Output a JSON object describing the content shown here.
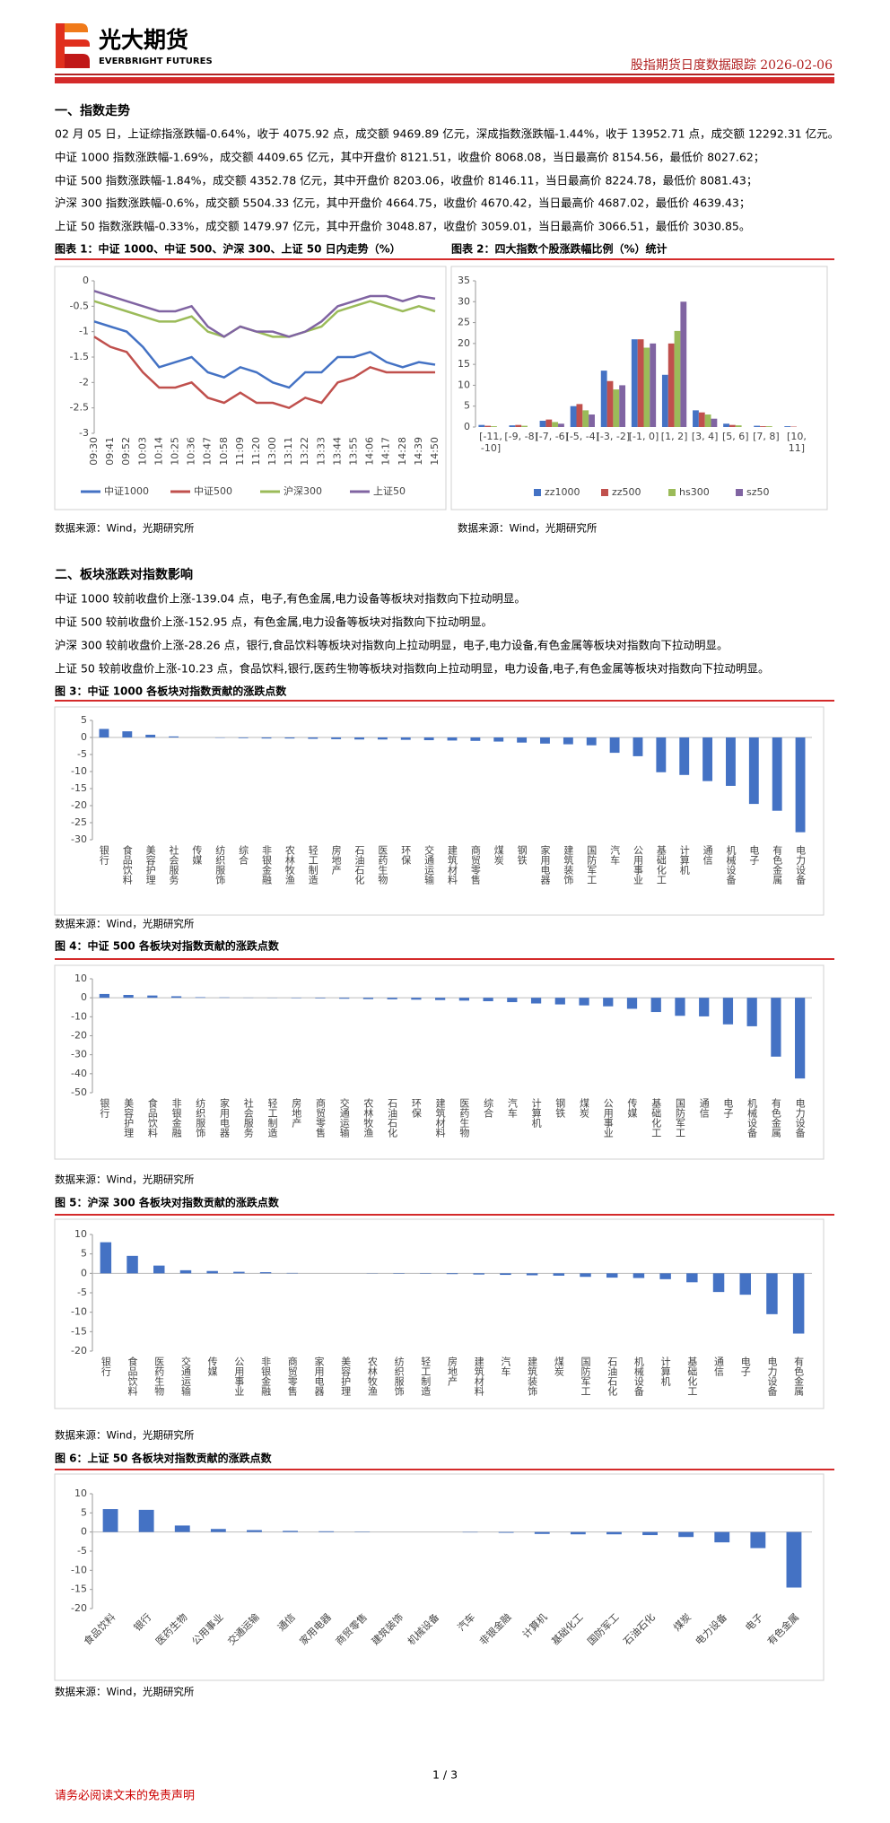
{
  "header": {
    "logo_cn": "光大期货",
    "logo_en": "EVERBRIGHT FUTURES",
    "report": "股指期货日度数据跟踪 2026-02-06"
  },
  "sections": [
    {
      "title": "一、指数走势",
      "paragraphs": [
        "02 月 05 日，上证综指涨跌幅-0.64%，收于 4075.92 点，成交额 9469.89 亿元，深成指数涨跌幅-1.44%，收于 13952.71 点，成交额 12292.31 亿元。",
        "中证 1000 指数涨跌幅-1.69%，成交额 4409.65 亿元，其中开盘价 8121.51，收盘价 8068.08，当日最高价 8154.56，最低价 8027.62；",
        "中证 500 指数涨跌幅-1.84%，成交额 4352.78 亿元，其中开盘价 8203.06，收盘价 8146.11，当日最高价 8224.78，最低价 8081.43；",
        "沪深 300 指数涨跌幅-0.6%，成交额 5504.33 亿元，其中开盘价 4664.75，收盘价 4670.42，当日最高价 4687.02，最低价 4639.43；",
        "上证 50 指数涨跌幅-0.33%，成交额 1479.97 亿元，其中开盘价 3048.87，收盘价 3059.01，当日最高价 3066.51，最低价 3030.85。"
      ]
    },
    {
      "title": "二、板块涨跌对指数影响",
      "paragraphs": [
        "中证 1000 较前收盘价上涨-139.04 点，电子,有色金属,电力设备等板块对指数向下拉动明显。",
        "中证 500 较前收盘价上涨-152.95 点，有色金属,电力设备等板块对指数向下拉动明显。",
        "沪深 300 较前收盘价上涨-28.26 点，银行,食品饮料等板块对指数向上拉动明显，电子,电力设备,有色金属等板块对指数向下拉动明显。",
        "上证 50 较前收盘价上涨-10.23 点，食品饮料,银行,医药生物等板块对指数向上拉动明显，电力设备,电子,有色金属等板块对指数向下拉动明显。"
      ]
    }
  ],
  "chart_data": [
    {
      "type": "line",
      "title": "图表 1：中证 1000、中证 500、沪深 300、上证 50 日内走势（%）",
      "source": "数据来源：Wind，光期研究所",
      "categories": [
        "09:30",
        "09:41",
        "09:52",
        "10:03",
        "10:14",
        "10:25",
        "10:36",
        "10:47",
        "10:58",
        "11:09",
        "11:20",
        "13:00",
        "13:11",
        "13:22",
        "13:33",
        "13:44",
        "13:55",
        "14:06",
        "14:17",
        "14:28",
        "14:39",
        "14:50"
      ],
      "ylim": [
        -3,
        0
      ],
      "yticks": [
        0,
        -0.5,
        -1,
        -1.5,
        -2,
        -2.5,
        -3
      ],
      "series": [
        {
          "name": "中证1000",
          "color": "#4472c4",
          "values": [
            -0.8,
            -0.9,
            -1.0,
            -1.3,
            -1.7,
            -1.6,
            -1.5,
            -1.8,
            -1.9,
            -1.7,
            -1.8,
            -2.0,
            -2.1,
            -1.8,
            -1.8,
            -1.5,
            -1.5,
            -1.4,
            -1.6,
            -1.7,
            -1.6,
            -1.65
          ]
        },
        {
          "name": "中证500",
          "color": "#c0504d",
          "values": [
            -1.1,
            -1.3,
            -1.4,
            -1.8,
            -2.1,
            -2.1,
            -2.0,
            -2.3,
            -2.4,
            -2.2,
            -2.4,
            -2.4,
            -2.5,
            -2.3,
            -2.4,
            -2.0,
            -1.9,
            -1.7,
            -1.8,
            -1.8,
            -1.8,
            -1.8
          ]
        },
        {
          "name": "沪深300",
          "color": "#9bbb59",
          "values": [
            -0.4,
            -0.5,
            -0.6,
            -0.7,
            -0.8,
            -0.8,
            -0.7,
            -1.0,
            -1.1,
            -0.9,
            -1.0,
            -1.1,
            -1.1,
            -1.0,
            -0.9,
            -0.6,
            -0.5,
            -0.4,
            -0.5,
            -0.6,
            -0.5,
            -0.6
          ]
        },
        {
          "name": "上证50",
          "color": "#8064a2",
          "values": [
            -0.2,
            -0.3,
            -0.4,
            -0.5,
            -0.6,
            -0.6,
            -0.5,
            -0.9,
            -1.1,
            -0.9,
            -1.0,
            -1.0,
            -1.1,
            -1.0,
            -0.8,
            -0.5,
            -0.4,
            -0.3,
            -0.3,
            -0.4,
            -0.3,
            -0.35
          ]
        }
      ]
    },
    {
      "type": "grouped_bar",
      "title": "图表 2：四大指数个股涨跌幅比例（%）统计",
      "source": "数据来源：Wind，光期研究所",
      "categories": [
        "[-11, -10]",
        "[-9, -8]",
        "[-7, -6]",
        "[-5, -4]",
        "[-3, -2]",
        "[-1, 0]",
        "[1, 2]",
        "[3, 4]",
        "[5, 6]",
        "[7, 8]",
        "[10, 11]"
      ],
      "ylim": [
        0,
        35
      ],
      "yticks": [
        0,
        5,
        10,
        15,
        20,
        25,
        30,
        35
      ],
      "series": [
        {
          "name": "zz1000",
          "color": "#4472c4",
          "values": [
            0.5,
            0.4,
            1.5,
            5,
            13.5,
            21,
            12.5,
            4,
            0.8,
            0.3,
            0.2
          ]
        },
        {
          "name": "zz500",
          "color": "#c0504d",
          "values": [
            0.3,
            0.5,
            1.8,
            5.5,
            11,
            21,
            20,
            3.5,
            0.5,
            0.2,
            0.1
          ]
        },
        {
          "name": "hs300",
          "color": "#9bbb59",
          "values": [
            0.2,
            0.3,
            1.2,
            4,
            9,
            19,
            23,
            3,
            0.4,
            0.2,
            0
          ]
        },
        {
          "name": "sz50",
          "color": "#8064a2",
          "values": [
            0,
            0,
            0.8,
            3,
            10,
            20,
            30,
            2,
            0,
            0,
            0
          ]
        }
      ]
    },
    {
      "type": "bar",
      "title": "图 3：中证 1000 各板块对指数贡献的涨跌点数",
      "source": "数据来源：Wind，光期研究所",
      "color": "#4472c4",
      "categories": [
        "银行",
        "食品饮料",
        "美容护理",
        "社会服务",
        "传媒",
        "纺织服饰",
        "综合",
        "非银金融",
        "农林牧渔",
        "轻工制造",
        "房地产",
        "石油石化",
        "医药生物",
        "环保",
        "交通运输",
        "建筑材料",
        "商贸零售",
        "煤炭",
        "钢铁",
        "家用电器",
        "建筑装饰",
        "国防军工",
        "汽车",
        "公用事业",
        "基础化工",
        "计算机",
        "通信",
        "机械设备",
        "电子",
        "有色金属",
        "电力设备"
      ],
      "values": [
        2.5,
        1.8,
        0.8,
        0.3,
        0,
        -0.1,
        -0.2,
        -0.3,
        -0.3,
        -0.4,
        -0.5,
        -0.6,
        -0.6,
        -0.7,
        -0.8,
        -0.9,
        -1.0,
        -1.2,
        -1.5,
        -1.8,
        -2.0,
        -2.3,
        -4.5,
        -5.5,
        -10.2,
        -11,
        -12.8,
        -14.2,
        -19.5,
        -21.5,
        -27.8
      ],
      "ylim": [
        -30,
        5
      ],
      "yticks": [
        5,
        0,
        -5,
        -10,
        -15,
        -20,
        -25,
        -30
      ]
    },
    {
      "type": "bar",
      "title": "图 4：中证 500 各板块对指数贡献的涨跌点数",
      "source": "数据来源：Wind，光期研究所",
      "color": "#4472c4",
      "categories": [
        "银行",
        "美容护理",
        "食品饮料",
        "非银金融",
        "纺织服饰",
        "家用电器",
        "社会服务",
        "轻工制造",
        "房地产",
        "商贸零售",
        "交通运输",
        "农林牧渔",
        "石油石化",
        "环保",
        "建筑材料",
        "医药生物",
        "综合",
        "汽车",
        "计算机",
        "钢铁",
        "煤炭",
        "公用事业",
        "传媒",
        "基础化工",
        "国防军工",
        "通信",
        "电子",
        "机械设备",
        "有色金属",
        "电力设备"
      ],
      "values": [
        2.0,
        1.5,
        1.2,
        0.8,
        0.3,
        0.2,
        0.1,
        -0.1,
        -0.2,
        -0.3,
        -0.5,
        -0.7,
        -0.8,
        -1.0,
        -1.2,
        -1.5,
        -1.8,
        -2.3,
        -3.0,
        -3.5,
        -4.0,
        -4.5,
        -5.8,
        -7.5,
        -9.5,
        -9.8,
        -14,
        -15,
        -31,
        -42.5
      ],
      "ylim": [
        -50,
        10
      ],
      "yticks": [
        10,
        0,
        -10,
        -20,
        -30,
        -40,
        -50
      ]
    },
    {
      "type": "bar",
      "title": "图 5：沪深 300 各板块对指数贡献的涨跌点数",
      "source": "数据来源：Wind，光期研究所",
      "color": "#4472c4",
      "categories": [
        "银行",
        "食品饮料",
        "医药生物",
        "交通运输",
        "传媒",
        "公用事业",
        "非银金融",
        "商贸零售",
        "家用电器",
        "美容护理",
        "农林牧渔",
        "纺织服饰",
        "轻工制造",
        "房地产",
        "建筑材料",
        "汽车",
        "建筑装饰",
        "煤炭",
        "国防军工",
        "石油石化",
        "机械设备",
        "计算机",
        "基础化工",
        "通信",
        "电子",
        "电力设备",
        "有色金属"
      ],
      "values": [
        8.0,
        4.5,
        2.0,
        0.8,
        0.6,
        0.4,
        0.3,
        0.1,
        0,
        0,
        -0.05,
        -0.1,
        -0.1,
        -0.2,
        -0.3,
        -0.4,
        -0.5,
        -0.6,
        -0.9,
        -1.1,
        -1.2,
        -1.5,
        -2.3,
        -4.8,
        -5.5,
        -10.5,
        -15.5
      ],
      "ylim": [
        -20,
        10
      ],
      "yticks": [
        10,
        5,
        0,
        -5,
        -10,
        -15,
        -20
      ]
    },
    {
      "type": "bar",
      "title": "图 6：上证 50 各板块对指数贡献的涨跌点数",
      "source": "数据来源：Wind，光期研究所",
      "color": "#4472c4",
      "categories": [
        "食品饮料",
        "银行",
        "医药生物",
        "公用事业",
        "交通运输",
        "通信",
        "家用电器",
        "商贸零售",
        "建筑装饰",
        "机械设备",
        "汽车",
        "非银金融",
        "计算机",
        "基础化工",
        "国防军工",
        "石油石化",
        "煤炭",
        "电力设备",
        "电子",
        "有色金属"
      ],
      "values": [
        6.0,
        5.8,
        1.7,
        0.8,
        0.5,
        0.3,
        0.2,
        0.1,
        0,
        0,
        -0.1,
        -0.2,
        -0.5,
        -0.6,
        -0.6,
        -0.8,
        -1.3,
        -2.7,
        -4.2,
        -14.5
      ],
      "ylim": [
        -20,
        10
      ],
      "yticks": [
        10,
        5,
        0,
        -5,
        -10,
        -15,
        -20
      ]
    }
  ],
  "footer": {
    "page": "1 / 3",
    "disclaimer": "请务必阅读文末的免责声明"
  }
}
